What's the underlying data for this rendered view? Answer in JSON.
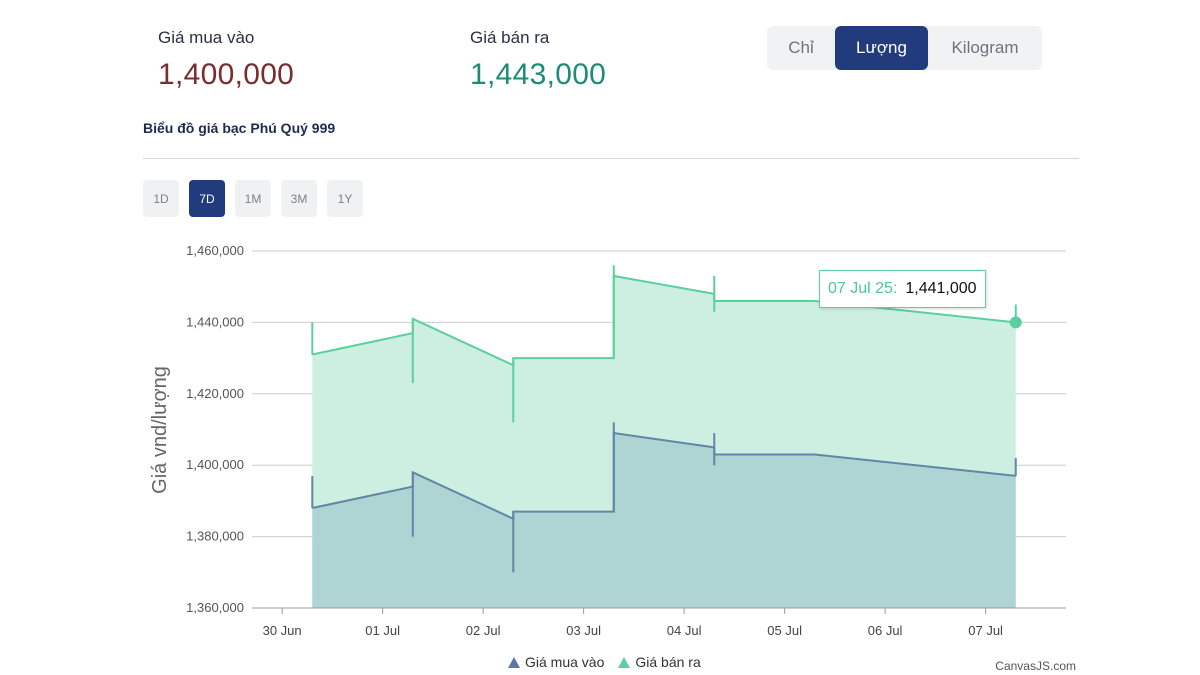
{
  "header": {
    "buy_label": "Giá mua vào",
    "buy_value": "1,400,000",
    "sell_label": "Giá bán ra",
    "sell_value": "1,443,000"
  },
  "units": {
    "options": [
      "Chỉ",
      "Lượng",
      "Kilogram"
    ],
    "selected": "Lượng"
  },
  "chart_title": "Biểu đồ giá bạc Phú Quý 999",
  "ranges": {
    "options": [
      "1D",
      "7D",
      "1M",
      "3M",
      "1Y"
    ],
    "selected": "7D"
  },
  "tooltip": {
    "date": "07 Jul 25:",
    "value": "1,441,000"
  },
  "credits": "CanvasJS.com",
  "colors": {
    "buy_line": "#6186a6",
    "buy_fill": "#aed5d3",
    "sell_line": "#5ccf9e",
    "sell_fill": "#ccefe1",
    "accent": "#223b7c"
  },
  "chart_data": {
    "type": "area",
    "ylabel": "Giá vnd/lượng",
    "xlabel": "",
    "ylim": [
      1360000,
      1460000
    ],
    "y_ticks": [
      "1,460,000",
      "1,440,000",
      "1,420,000",
      "1,400,000",
      "1,380,000",
      "1,360,000"
    ],
    "y_tick_values": [
      1460000,
      1440000,
      1420000,
      1400000,
      1380000,
      1360000
    ],
    "x_ticks": [
      "30 Jun",
      "01 Jul",
      "02 Jul",
      "03 Jul",
      "04 Jul",
      "05 Jul",
      "06 Jul",
      "07 Jul"
    ],
    "x_range_days": [
      -0.3,
      7.8
    ],
    "grid": true,
    "legend": "bottom-center",
    "series": [
      {
        "name": "Giá mua vào",
        "points": [
          {
            "x": 0.3,
            "y": 1388000,
            "low": 1388000,
            "high": 1397000
          },
          {
            "x": 1.3,
            "y": 1394000,
            "low": 1380000,
            "high": 1398000
          },
          {
            "x": 2.3,
            "y": 1385000,
            "low": 1370000,
            "high": 1387000
          },
          {
            "x": 3.3,
            "y": 1387000,
            "low": 1387000,
            "high": 1412000
          },
          {
            "x": 4.3,
            "y": 1405000,
            "low": 1400000,
            "high": 1409000
          },
          {
            "x": 5.3,
            "y": 1403000,
            "low": 1403000,
            "high": 1403000
          },
          {
            "x": 7.3,
            "y": 1397000,
            "low": 1397000,
            "high": 1402000
          }
        ],
        "path": [
          [
            0.3,
            1388000
          ],
          [
            1.3,
            1394000
          ],
          [
            1.3,
            1398000
          ],
          [
            2.3,
            1385000
          ],
          [
            2.3,
            1387000
          ],
          [
            3.3,
            1387000
          ],
          [
            3.3,
            1409000
          ],
          [
            4.3,
            1405000
          ],
          [
            4.3,
            1403000
          ],
          [
            5.3,
            1403000
          ],
          [
            7.3,
            1397000
          ]
        ]
      },
      {
        "name": "Giá bán ra",
        "points": [
          {
            "x": 0.3,
            "y": 1431000,
            "low": 1431000,
            "high": 1440000
          },
          {
            "x": 1.3,
            "y": 1437000,
            "low": 1423000,
            "high": 1441000
          },
          {
            "x": 2.3,
            "y": 1428000,
            "low": 1412000,
            "high": 1430000
          },
          {
            "x": 3.3,
            "y": 1430000,
            "low": 1430000,
            "high": 1456000
          },
          {
            "x": 4.3,
            "y": 1448000,
            "low": 1443000,
            "high": 1453000
          },
          {
            "x": 5.3,
            "y": 1446000,
            "low": 1446000,
            "high": 1446000
          },
          {
            "x": 7.3,
            "y": 1441000,
            "low": 1440000,
            "high": 1445000
          }
        ],
        "path": [
          [
            0.3,
            1431000
          ],
          [
            1.3,
            1437000
          ],
          [
            1.3,
            1441000
          ],
          [
            2.3,
            1428000
          ],
          [
            2.3,
            1430000
          ],
          [
            3.3,
            1430000
          ],
          [
            3.3,
            1453000
          ],
          [
            4.3,
            1448000
          ],
          [
            4.3,
            1446000
          ],
          [
            5.3,
            1446000
          ],
          [
            7.3,
            1440000
          ]
        ]
      }
    ]
  }
}
